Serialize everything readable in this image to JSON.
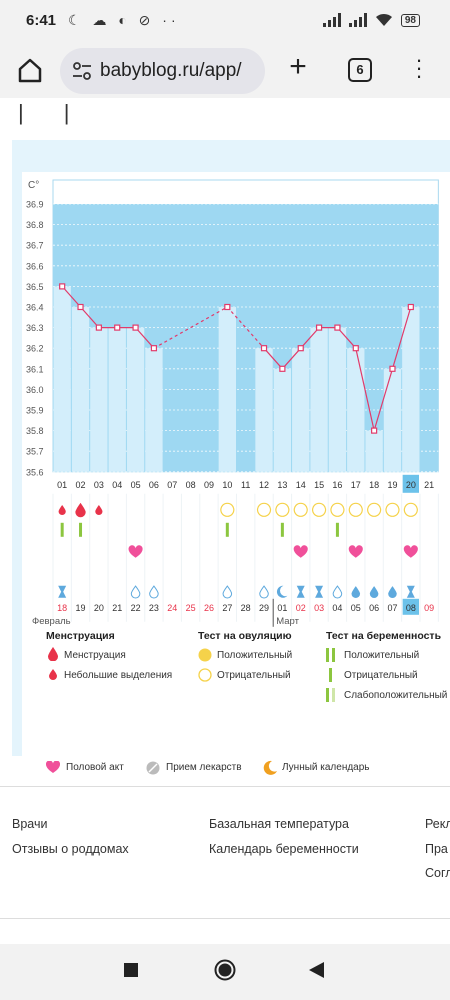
{
  "status": {
    "time": "6:41",
    "icons": "☾ ☁ ◐ ⊘ ··",
    "battery": "98"
  },
  "browser": {
    "url": "babyblog.ru/app/",
    "tab_count": "6"
  },
  "chart_data": {
    "type": "line",
    "title": "",
    "y_unit": "C°",
    "ylim": [
      35.6,
      36.9
    ],
    "y_ticks": [
      "36.9",
      "36.8",
      "36.7",
      "36.6",
      "36.5",
      "36.4",
      "36.3",
      "36.2",
      "36.1",
      "36.0",
      "35.9",
      "35.8",
      "35.7",
      "35.6"
    ],
    "cycle_days": [
      "01",
      "02",
      "03",
      "04",
      "05",
      "06",
      "07",
      "08",
      "09",
      "10",
      "11",
      "12",
      "13",
      "14",
      "15",
      "16",
      "17",
      "18",
      "19",
      "20",
      "21"
    ],
    "dates": [
      "18",
      "19",
      "20",
      "21",
      "22",
      "23",
      "24",
      "25",
      "26",
      "27",
      "28",
      "29",
      "01",
      "02",
      "03",
      "04",
      "05",
      "06",
      "07",
      "08",
      "09"
    ],
    "date_red_indices": [
      0,
      6,
      7,
      8,
      13,
      14,
      20
    ],
    "month_labels": [
      {
        "label": "Февраль",
        "start_index": 0
      },
      {
        "label": "Март",
        "start_index": 12
      }
    ],
    "temperatures": [
      36.5,
      36.4,
      36.3,
      36.3,
      36.3,
      36.2,
      null,
      null,
      null,
      36.4,
      null,
      36.2,
      36.1,
      36.2,
      36.3,
      36.3,
      36.2,
      35.8,
      36.1,
      36.4,
      null
    ],
    "highlight_day_index": 19,
    "menstruation_row": [
      "drop-small",
      "drop-big",
      "drop-small",
      "",
      "",
      "",
      "",
      "",
      "",
      "",
      "",
      "",
      "",
      "",
      "",
      "",
      "",
      "",
      "",
      "",
      ""
    ],
    "ovulation_test_row": [
      "",
      "",
      "",
      "",
      "",
      "",
      "",
      "",
      "",
      "empty",
      "",
      "empty",
      "empty",
      "empty",
      "empty",
      "empty",
      "empty",
      "empty",
      "empty",
      "empty",
      ""
    ],
    "pregnancy_test_row": [
      "green",
      "green",
      "",
      "",
      "",
      "",
      "",
      "",
      "",
      "green",
      "",
      "",
      "green",
      "",
      "",
      "green",
      "",
      "",
      "",
      "",
      ""
    ],
    "intercourse_row": [
      "",
      "",
      "",
      "",
      "heart",
      "",
      "",
      "",
      "",
      "",
      "",
      "",
      "",
      "heart",
      "",
      "",
      "heart",
      "",
      "",
      "heart",
      ""
    ],
    "symbol_row": [
      "hourglass",
      "",
      "",
      "",
      "drop-outline",
      "drop-outline",
      "",
      "",
      "",
      "drop-outline",
      "",
      "drop-outline",
      "moon",
      "hourglass",
      "hourglass",
      "drop-outline",
      "drop-blue",
      "drop-blue",
      "drop-blue",
      "hourglass",
      ""
    ]
  },
  "legend": {
    "menstruation": {
      "title": "Менструация",
      "items": [
        "Менструация",
        "Небольшие выделения"
      ]
    },
    "ovulation": {
      "title": "Тест на овуляцию",
      "items": [
        "Положительный",
        "Отрицательный"
      ]
    },
    "pregnancy": {
      "title": "Тест на беременность",
      "items": [
        "Положительный",
        "Отрицательный",
        "Слабоположительный"
      ]
    },
    "bottom": [
      "Половой акт",
      "Прием лекарств",
      "Лунный календарь"
    ]
  },
  "footer": {
    "col1": [
      "Врачи",
      "Отзывы о роддомах"
    ],
    "col2": [
      "Базальная температура",
      "Календарь беременности"
    ],
    "col3": [
      "Рекл",
      "Пра",
      "Согл"
    ]
  },
  "colors": {
    "chart_blue": "#9ed8f2",
    "bar_light": "#d3eefb",
    "line_pink": "#e23a6a",
    "red": "#e8334a",
    "green": "#8cc63f",
    "yellow": "#f5d24a",
    "heart": "#f0509a",
    "drop_blue": "#5ea9dd",
    "highlight": "#6cc2ea"
  }
}
